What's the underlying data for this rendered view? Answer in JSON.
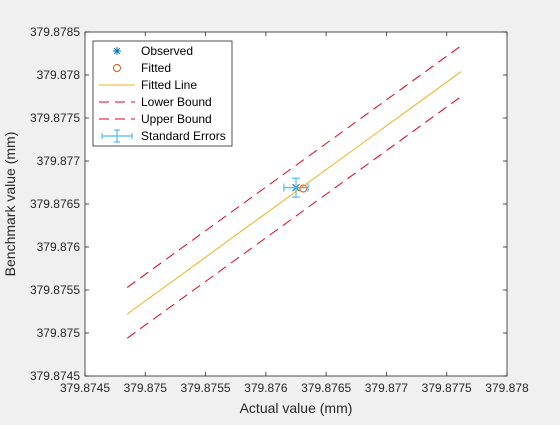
{
  "chart_data": {
    "type": "line",
    "title": "",
    "xlabel": "Actual value (mm)",
    "ylabel": "Benchmark value (mm)",
    "xlim": [
      379.8745,
      379.878
    ],
    "ylim": [
      379.8745,
      379.8785
    ],
    "x_ticks": [
      379.8745,
      379.875,
      379.8755,
      379.876,
      379.8765,
      379.877,
      379.8775,
      379.878
    ],
    "y_ticks": [
      379.8745,
      379.875,
      379.8755,
      379.876,
      379.8765,
      379.877,
      379.8775,
      379.878,
      379.8785
    ],
    "grid": false,
    "legend_position": "top-left",
    "series": [
      {
        "name": "Observed",
        "kind": "marker-asterisk",
        "color": "#0072BD",
        "points": [
          [
            379.87625,
            379.87669
          ]
        ]
      },
      {
        "name": "Fitted",
        "kind": "marker-circle",
        "color": "#D95319",
        "points": [
          [
            379.87631,
            379.87668
          ]
        ]
      },
      {
        "name": "Fitted Line",
        "kind": "solid-line",
        "color": "#EDB120",
        "points": [
          [
            379.87485,
            379.87522
          ],
          [
            379.87762,
            379.87804
          ]
        ]
      },
      {
        "name": "Lower Bound",
        "kind": "dashed-line",
        "color": "#E0001B",
        "points": [
          [
            379.87485,
            379.87494
          ],
          [
            379.87762,
            379.87775
          ]
        ]
      },
      {
        "name": "Upper Bound",
        "kind": "dashed-line",
        "color": "#E0001B",
        "points": [
          [
            379.87485,
            379.87553
          ],
          [
            379.87762,
            379.87834
          ]
        ]
      },
      {
        "name": "Standard Errors",
        "kind": "errorbar",
        "color": "#4DBEEE",
        "center": [
          379.87625,
          379.87669
        ],
        "x_err": 0.0001,
        "y_err": 0.00011
      }
    ]
  }
}
